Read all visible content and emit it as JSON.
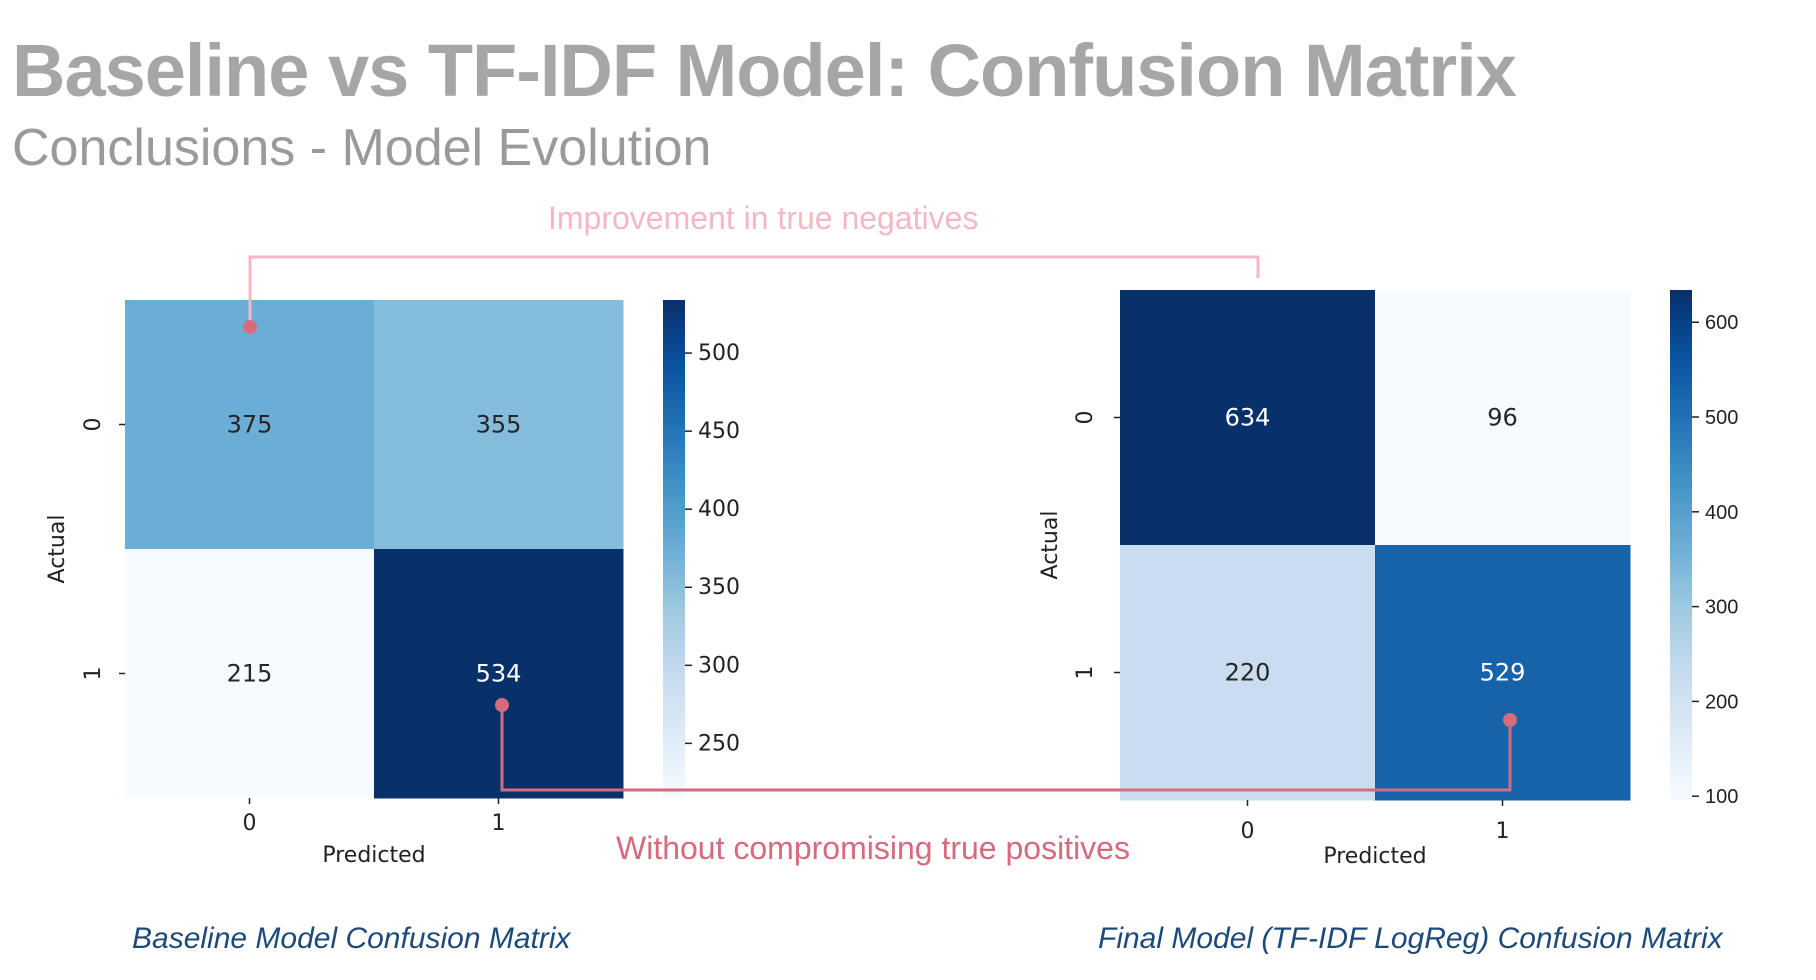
{
  "page": {
    "title": "Baseline vs TF-IDF Model: Confusion Matrix",
    "subtitle": "Conclusions - Model Evolution"
  },
  "annotations": {
    "top": "Improvement in true negatives",
    "bottom": "Without compromising true positives",
    "top_color": "#f3b8c3",
    "bottom_color": "#d66a7e"
  },
  "captions": {
    "left": "Baseline Model Confusion Matrix",
    "right": "Final Model (TF-IDF LogReg) Confusion Matrix"
  },
  "chart_data": [
    {
      "type": "heatmap",
      "colormap": "Blues",
      "xlabel": "Predicted",
      "ylabel": "Actual",
      "x_ticks": [
        "0",
        "1"
      ],
      "y_ticks": [
        "0",
        "1"
      ],
      "matrix": [
        [
          375,
          355
        ],
        [
          215,
          534
        ]
      ],
      "colorbar": {
        "min": 215,
        "max": 534,
        "ticks": [
          250,
          300,
          350,
          400,
          450,
          500
        ]
      }
    },
    {
      "type": "heatmap",
      "colormap": "Blues",
      "xlabel": "Predicted",
      "ylabel": "Actual",
      "x_ticks": [
        "0",
        "1"
      ],
      "y_ticks": [
        "0",
        "1"
      ],
      "matrix": [
        [
          634,
          96
        ],
        [
          220,
          529
        ]
      ],
      "colorbar": {
        "min": 96,
        "max": 634,
        "ticks": [
          100,
          200,
          300,
          400,
          500,
          600
        ]
      }
    }
  ]
}
